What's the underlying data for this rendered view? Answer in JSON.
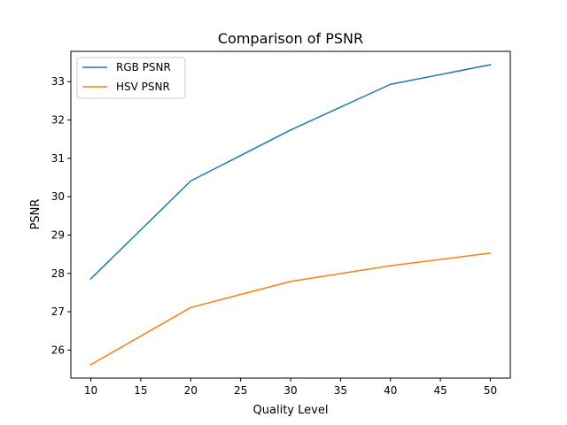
{
  "chart_data": {
    "type": "line",
    "title": "Comparison of PSNR",
    "xlabel": "Quality Level",
    "ylabel": "PSNR",
    "x": [
      10,
      20,
      30,
      40,
      50
    ],
    "series": [
      {
        "name": "RGB PSNR",
        "color": "#1f77b4",
        "values": [
          27.86,
          30.41,
          31.74,
          32.93,
          33.44
        ]
      },
      {
        "name": "HSV PSNR",
        "color": "#ff7f0e",
        "values": [
          25.62,
          27.11,
          27.79,
          28.2,
          28.53
        ]
      }
    ],
    "xlim": [
      8,
      52
    ],
    "ylim": [
      25.27,
      33.79
    ],
    "xticks": [
      10,
      15,
      20,
      25,
      30,
      35,
      40,
      45,
      50
    ],
    "yticks": [
      26,
      27,
      28,
      29,
      30,
      31,
      32,
      33
    ],
    "grid": false,
    "legend_position": "top-left"
  }
}
